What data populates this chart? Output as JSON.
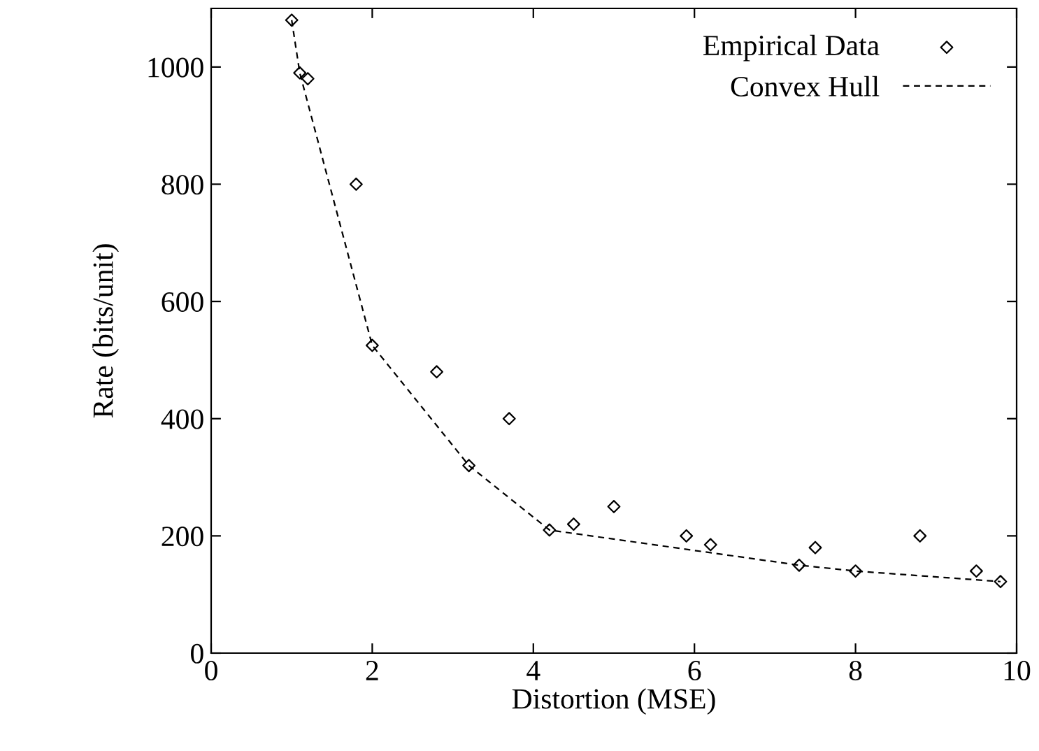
{
  "chart_data": {
    "type": "scatter",
    "xlabel": "Distortion (MSE)",
    "ylabel": "Rate (bits/unit)",
    "xlim": [
      0,
      10
    ],
    "ylim": [
      0,
      1100
    ],
    "xticks": [
      0,
      2,
      4,
      6,
      8,
      10
    ],
    "yticks": [
      0,
      200,
      400,
      600,
      800,
      1000
    ],
    "grid": false,
    "legend": "top right",
    "series": [
      {
        "name": "Empirical Data",
        "marker": "diamond",
        "color": "#000000",
        "x": [
          1.0,
          1.1,
          1.2,
          1.8,
          2.0,
          2.8,
          3.2,
          3.7,
          4.2,
          4.5,
          5.0,
          5.9,
          6.2,
          7.3,
          7.5,
          8.0,
          8.8,
          9.5,
          9.8
        ],
        "values": [
          1080,
          990,
          980,
          800,
          525,
          480,
          320,
          400,
          210,
          220,
          250,
          200,
          185,
          150,
          180,
          140,
          200,
          140,
          122
        ]
      },
      {
        "name": "Convex Hull",
        "type": "line",
        "line_style": "dashed",
        "color": "#000000",
        "x": [
          1.0,
          1.1,
          2.0,
          3.2,
          4.2,
          7.3,
          8.0,
          9.8
        ],
        "values": [
          1080,
          990,
          525,
          320,
          210,
          150,
          140,
          122
        ]
      }
    ]
  }
}
